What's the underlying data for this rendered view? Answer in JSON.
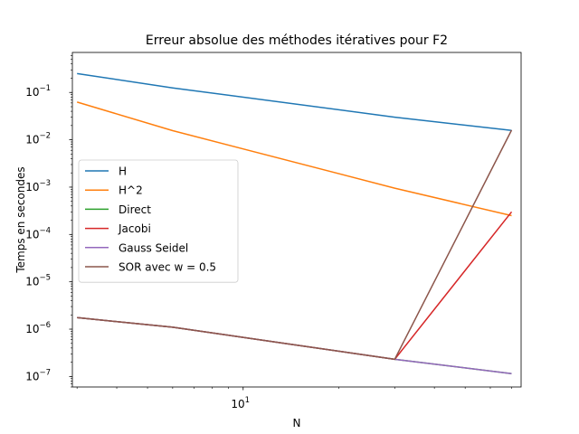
{
  "chart_data": {
    "type": "line",
    "title": "Erreur absolue des méthodes itératives pour F2",
    "xlabel": "N",
    "ylabel": "Temps en secondes",
    "xscale": "log",
    "yscale": "log",
    "xlim": [
      2.9,
      75
    ],
    "ylim": [
      6e-08,
      0.7
    ],
    "x_ticks": [
      {
        "value": 10,
        "base": "10",
        "exp": "1"
      }
    ],
    "y_ticks": [
      {
        "value": 1e-07,
        "base": "10",
        "exp": "−7"
      },
      {
        "value": 1e-06,
        "base": "10",
        "exp": "−6"
      },
      {
        "value": 1e-05,
        "base": "10",
        "exp": "−5"
      },
      {
        "value": 0.0001,
        "base": "10",
        "exp": "−4"
      },
      {
        "value": 0.001,
        "base": "10",
        "exp": "−3"
      },
      {
        "value": 0.01,
        "base": "10",
        "exp": "−2"
      },
      {
        "value": 0.1,
        "base": "10",
        "exp": "−1"
      }
    ],
    "grid": false,
    "legend_position": "center-left",
    "x": [
      3,
      6,
      30,
      70
    ],
    "series": [
      {
        "name": "H",
        "color": "#1f77b4",
        "values": [
          0.25,
          0.125,
          0.03,
          0.0157
        ]
      },
      {
        "name": "H^2",
        "color": "#ff7f0e",
        "values": [
          0.0625,
          0.0156,
          0.00095,
          0.00025
        ]
      },
      {
        "name": "Direct",
        "color": "#2ca02c",
        "values": [
          1.75e-06,
          1.1e-06,
          2.3e-07,
          1.15e-07
        ]
      },
      {
        "name": "Jacobi",
        "color": "#d62728",
        "values": [
          1.75e-06,
          1.1e-06,
          2.3e-07,
          0.0003
        ]
      },
      {
        "name": "Gauss Seidel",
        "color": "#9467bd",
        "values": [
          1.75e-06,
          1.1e-06,
          2.3e-07,
          1.15e-07
        ]
      },
      {
        "name": "SOR avec w = 0.5",
        "color": "#8c564b",
        "values": [
          1.75e-06,
          1.1e-06,
          2.3e-07,
          0.016
        ]
      }
    ]
  }
}
